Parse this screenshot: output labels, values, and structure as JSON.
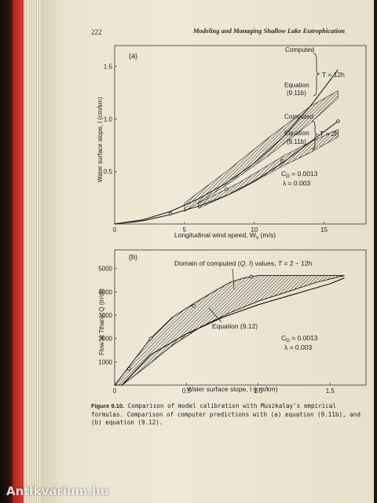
{
  "page": {
    "number": "222",
    "running_head": "Modeling and Managing Shallow Lake Eutrophication",
    "watermark": "Antikvárium.hu"
  },
  "caption": {
    "label": "Figure 9.10.",
    "text": "Comparison of model calibration with Muszkalay's empirical formulas. Comparison of computer predictions with (a) equation (9.11b), and (b) equation (9.12)."
  },
  "chart_data": [
    {
      "type": "line",
      "panel_label": "(a)",
      "xlabel": "Longitudinal wind speed, W",
      "xlabel_sub": "x",
      "xlabel_unit": " (m/s)",
      "ylabel": "Water surface slope, I (cm/km)",
      "xlim": [
        0,
        18
      ],
      "ylim": [
        0,
        1.7
      ],
      "xticks": [
        "0",
        "5",
        "10",
        "15"
      ],
      "xtick_values": [
        0,
        5,
        10,
        15
      ],
      "yticks": [
        "0.5",
        "1.0",
        "1.5"
      ],
      "ytick_values": [
        0.5,
        1.0,
        1.5
      ],
      "series": [
        {
          "name": "Computed",
          "condition": "T = 12h",
          "x": [
            0,
            2,
            4,
            6,
            8,
            10,
            12,
            14,
            16
          ],
          "y": [
            0,
            0.04,
            0.12,
            0.24,
            0.39,
            0.58,
            0.82,
            1.12,
            1.47
          ]
        },
        {
          "name": "Computed",
          "condition": "T = 2h",
          "x": [
            0,
            2,
            4,
            6,
            8,
            10,
            12,
            14,
            16
          ],
          "y": [
            0,
            0.03,
            0.09,
            0.17,
            0.27,
            0.41,
            0.58,
            0.78,
            0.98
          ]
        }
      ],
      "bands": [
        {
          "name": "Equation (9.11b)",
          "condition": "T = 12h",
          "x": [
            5,
            8,
            11,
            14,
            16
          ],
          "lower": [
            0.12,
            0.37,
            0.65,
            0.96,
            1.2
          ],
          "upper": [
            0.2,
            0.5,
            0.82,
            1.12,
            1.27
          ]
        },
        {
          "name": "Equation (9.11b)",
          "condition": "T = 2h",
          "x": [
            6,
            9,
            12,
            14,
            16
          ],
          "lower": [
            0.15,
            0.33,
            0.55,
            0.68,
            0.83
          ],
          "upper": [
            0.2,
            0.4,
            0.64,
            0.78,
            0.9
          ]
        }
      ],
      "markers": {
        "x": [
          4,
          8,
          12,
          16
        ],
        "y": [
          0.1,
          0.33,
          0.6,
          0.98
        ]
      },
      "labels": {
        "computed": "Computed",
        "equation": "Equation",
        "equation_ref": "(9.11b)",
        "t12": "T = 12h",
        "t2": "T = 2h",
        "cd": "C",
        "cd_sub": "D",
        "cd_value": " = 0.0013",
        "lambda": "λ = 0.003"
      },
      "grid": false
    },
    {
      "type": "line",
      "panel_label": "(b)",
      "xlabel": "Water surface slope, I (cm/km)",
      "ylabel": "Flow at Tihany, Q (m³/s)",
      "xlim": [
        0,
        1.75
      ],
      "ylim": [
        0,
        5800
      ],
      "xticks": [
        "0",
        "0.5",
        "1.0",
        "1.5"
      ],
      "xtick_values": [
        0,
        0.5,
        1.0,
        1.5
      ],
      "yticks": [
        "1000",
        "2000",
        "3000",
        "4000",
        "5000"
      ],
      "ytick_values": [
        1000,
        2000,
        3000,
        4000,
        5000
      ],
      "domain": {
        "name": "Domain of computed (Q, I) values, T = 2 - 12h",
        "upper": {
          "x": [
            0,
            0.1,
            0.25,
            0.4,
            0.55,
            0.7,
            0.8,
            0.9,
            1.0
          ],
          "y": [
            0,
            800,
            2000,
            2900,
            3500,
            4050,
            4400,
            4600,
            4700
          ]
        },
        "lower": {
          "x": [
            0.05,
            0.2,
            0.4,
            0.6,
            0.8,
            1.0,
            1.2,
            1.4,
            1.6
          ],
          "y": [
            0,
            700,
            1700,
            2500,
            3100,
            3600,
            4000,
            4400,
            4700
          ]
        },
        "top": {
          "x": [
            0.85,
            1.6
          ],
          "y": [
            4700,
            4700
          ]
        }
      },
      "equation_curve": {
        "name": "Equation (9.12)",
        "x": [
          0.05,
          0.25,
          0.5,
          0.75,
          1.0,
          1.25,
          1.5,
          1.6
        ],
        "y": [
          0,
          1300,
          2200,
          2900,
          3450,
          3900,
          4350,
          4600
        ]
      },
      "markers": {
        "x": [
          0.1,
          0.25,
          0.55,
          0.95
        ],
        "y": [
          700,
          2000,
          3400,
          4650
        ]
      },
      "labels": {
        "domain_prefix": "Domain of computed (",
        "domain_q": "Q",
        "domain_sep": ", ",
        "domain_i": "I",
        "domain_suffix": ") values, ",
        "domain_t": "T",
        "domain_range": " = 2 − 12h",
        "equation": "Equation (9.12)",
        "cd": "C",
        "cd_sub": "D",
        "cd_value": " = 0.0013",
        "lambda": "λ = 0.003"
      },
      "grid": false
    }
  ]
}
